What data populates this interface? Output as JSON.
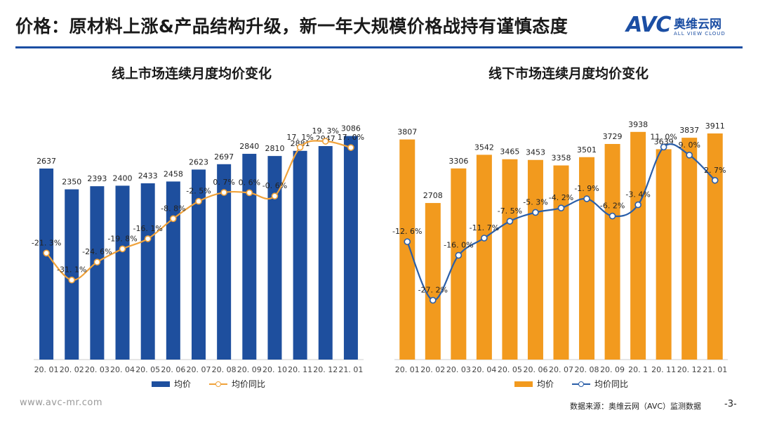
{
  "header": {
    "title": "价格：原材料上涨&产品结构升级，新一年大规模价格战持有谨慎态度",
    "logo_mark": "AVC",
    "logo_cn": "奥维云网",
    "logo_en": "ALL VIEW CLOUD"
  },
  "colors": {
    "online_bar": "#1e4f9e",
    "online_line": "#f0a23a",
    "offline_bar": "#f29a1e",
    "offline_line": "#2a5ea8",
    "rule": "#1b4ea3"
  },
  "chart_data": [
    {
      "type": "bar",
      "title": "线上市场连续月度均价变化",
      "categories": [
        "20.01",
        "20.02",
        "20.03",
        "20.04",
        "20.05",
        "20.06",
        "20.07",
        "20.08",
        "20.09",
        "20.10",
        "20.11",
        "20.12",
        "21.01"
      ],
      "category_labels": [
        "20. 01",
        "20. 02",
        "20. 03",
        "20. 04",
        "20. 05",
        "20. 06",
        "20. 07",
        "20. 08",
        "20. 09",
        "20. 10",
        "20. 11",
        "20. 12",
        "21. 01"
      ],
      "series": [
        {
          "name": "均价",
          "kind": "bar",
          "values": [
            2637,
            2350,
            2393,
            2400,
            2433,
            2458,
            2623,
            2697,
            2840,
            2810,
            2881,
            2947,
            3086
          ],
          "labels": [
            "2637",
            "2350",
            "2393",
            "2400",
            "2433",
            "2458",
            "2623",
            "2697",
            "2840",
            "2810",
            "2881",
            "2947",
            "3086"
          ]
        },
        {
          "name": "均价同比",
          "kind": "line",
          "unit": "%",
          "values": [
            -21.3,
            -31.1,
            -24.6,
            -19.8,
            -16.1,
            -8.8,
            -2.5,
            0.7,
            0.6,
            -0.6,
            17.1,
            19.3,
            17.0
          ],
          "labels": [
            "-21. 3%",
            "-31. 1%",
            "-24. 6%",
            "-19. 8%",
            "-16. 1%",
            "-8. 8%",
            "-2. 5%",
            "0. 7%",
            "0. 6%",
            "-0. 6%",
            "17. 1%",
            "19. 3%",
            "17. 0%"
          ]
        }
      ],
      "bar_range": [
        0,
        3800
      ],
      "line_range": [
        -60,
        40
      ]
    },
    {
      "type": "bar",
      "title": "线下市场连续月度均价变化",
      "categories": [
        "20.01",
        "20.02",
        "20.03",
        "20.04",
        "20.05",
        "20.06",
        "20.07",
        "20.08",
        "20.09",
        "20.10",
        "20.11",
        "20.12",
        "21.01"
      ],
      "category_labels": [
        "20. 01",
        "20. 02",
        "20. 03",
        "20. 04",
        "20. 05",
        "20. 06",
        "20. 07",
        "20. 08",
        "20. 09",
        "20. 1",
        "20. 11",
        "20. 12",
        "21. 01"
      ],
      "series": [
        {
          "name": "均价",
          "kind": "bar",
          "values": [
            3807,
            2708,
            3306,
            3542,
            3465,
            3453,
            3358,
            3501,
            3729,
            3938,
            3639,
            3837,
            3911
          ],
          "labels": [
            "3807",
            "2708",
            "3306",
            "3542",
            "3465",
            "3453",
            "3358",
            "3501",
            "3729",
            "3938",
            "3639",
            "3837",
            "3911"
          ]
        },
        {
          "name": "均价同比",
          "kind": "line",
          "unit": "%",
          "values": [
            -12.6,
            -27.2,
            -16.0,
            -11.7,
            -7.5,
            -5.3,
            -4.2,
            -1.9,
            -6.2,
            -3.4,
            11.0,
            9.0,
            2.7
          ],
          "labels": [
            "-12. 6%",
            "-27. 2%",
            "-16. 0%",
            "-11. 7%",
            "-7. 5%",
            "-5. 3%",
            "-4. 2%",
            "-1. 9%",
            "-6. 2%",
            "-3. 4%",
            "11. 0%",
            "9. 0%",
            "2. 7%"
          ]
        }
      ],
      "bar_range": [
        0,
        4300
      ],
      "line_range": [
        -42,
        20
      ]
    }
  ],
  "legend_left": {
    "bar": "均价",
    "line": "均价同比"
  },
  "legend_right": {
    "bar": "均价",
    "line": "均价同比"
  },
  "footer": {
    "url": "www.avc-mr.com",
    "source": "数据来源：奥维云网（AVC）监测数据",
    "page": "-3-"
  }
}
